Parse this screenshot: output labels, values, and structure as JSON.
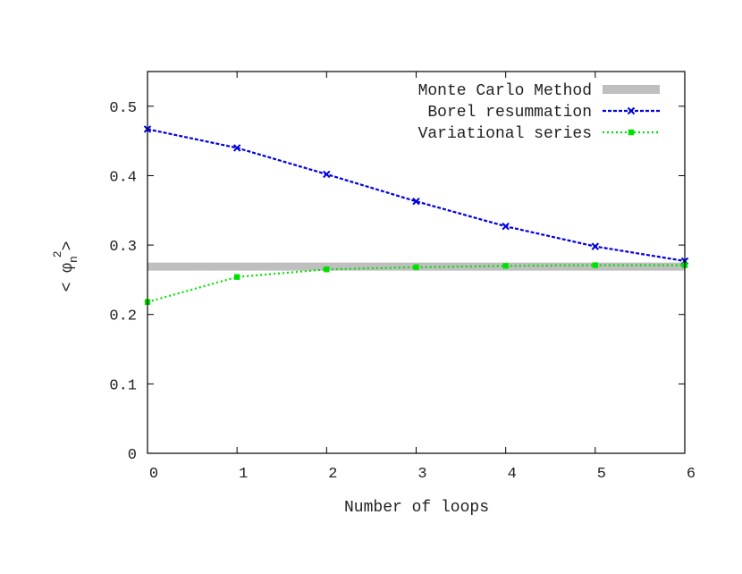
{
  "chart_data": {
    "type": "line",
    "xlabel": "Number of loops",
    "ylabel_base": "< φ",
    "ylabel_sub": "n",
    "ylabel_sup": "2",
    "ylabel_close": ">",
    "xlim": [
      0,
      6
    ],
    "ylim": [
      0,
      0.55
    ],
    "x_ticks": [
      0,
      1,
      2,
      3,
      4,
      5,
      6
    ],
    "x_tick_labels": [
      "0",
      "1",
      "2",
      "3",
      "4",
      "5",
      "6"
    ],
    "y_ticks": [
      0,
      0.1,
      0.2,
      0.3,
      0.4,
      0.5
    ],
    "y_tick_labels": [
      "0",
      "0.1",
      "0.2",
      "0.3",
      "0.4",
      "0.5"
    ],
    "grid": false,
    "legend_position": "top-right",
    "reference": {
      "name": "Monte Carlo Method",
      "value": 0.269,
      "color": "#bfbfbf"
    },
    "series": [
      {
        "name": "Borel resummation",
        "color": "#0000e0",
        "marker": "x",
        "dash": "4,2",
        "x": [
          0,
          1,
          2,
          3,
          4,
          5,
          6
        ],
        "y": [
          0.467,
          0.44,
          0.402,
          0.363,
          0.327,
          0.298,
          0.277
        ]
      },
      {
        "name": "Variational series",
        "color": "#00e000",
        "marker": "square",
        "dash": "2,3",
        "x": [
          0,
          1,
          2,
          3,
          4,
          5,
          6
        ],
        "y": [
          0.218,
          0.254,
          0.265,
          0.268,
          0.27,
          0.271,
          0.271
        ]
      }
    ]
  }
}
